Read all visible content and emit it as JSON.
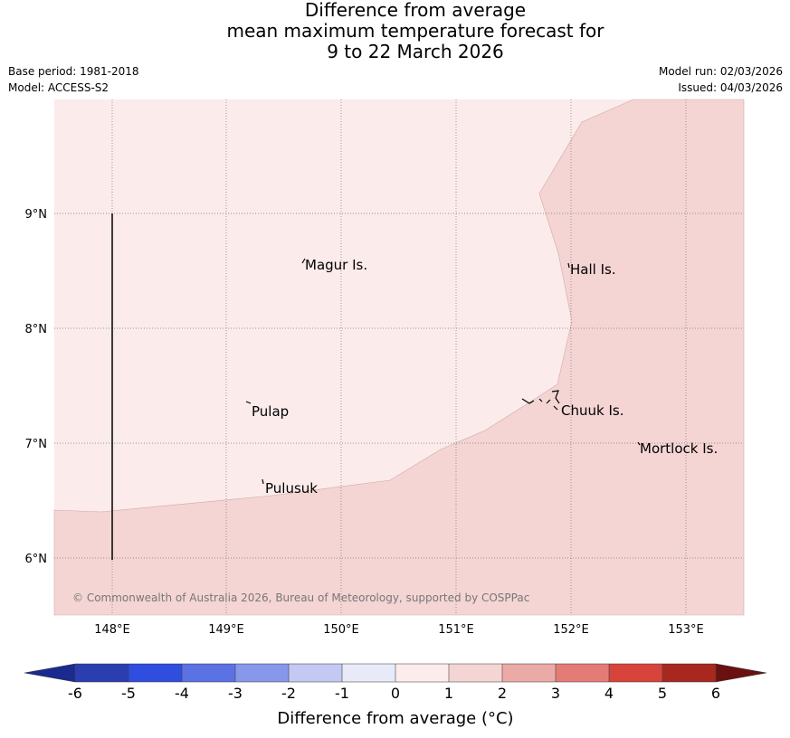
{
  "title": {
    "line1": "Difference from average",
    "line2": "mean maximum temperature forecast for",
    "line3": "9 to 22 March 2026"
  },
  "meta": {
    "base_period": "Base period: 1981-2018",
    "model": "Model: ACCESS-S2",
    "model_run": "Model run: 02/03/2026",
    "issued": "Issued: 04/03/2026"
  },
  "map": {
    "x_ticks": [
      "148°E",
      "149°E",
      "150°E",
      "151°E",
      "152°E",
      "153°E"
    ],
    "y_ticks": [
      "9°N",
      "8°N",
      "7°N",
      "6°N"
    ],
    "places": {
      "magur": "Magur Is.",
      "hall": "Hall Is.",
      "pulap": "Pulap",
      "chuuk": "Chuuk Is.",
      "mortlock": "Mortlock Is.",
      "pulusuk": "Pulusuk"
    },
    "copyright": "© Commonwealth of Australia 2026, Bureau of Meteorology, supported by COSPPac",
    "fill_colors": {
      "zero_to_one": "#fbebea",
      "one_to_two": "#f4d5d4"
    },
    "grid": true
  },
  "colorbar": {
    "label": "Difference from average (°C)",
    "ticks": [
      "-6",
      "-5",
      "-4",
      "-3",
      "-2",
      "-1",
      "0",
      "1",
      "2",
      "3",
      "4",
      "5",
      "6"
    ],
    "colors": [
      "#1a2a8f",
      "#2a3eb0",
      "#2f4ee0",
      "#5a72e4",
      "#8797ea",
      "#c3c9f2",
      "#e8eaf8",
      "#fcecec",
      "#f4d5d4",
      "#ecaaa6",
      "#e37c76",
      "#d6443b",
      "#a8281f",
      "#6b1010"
    ]
  }
}
